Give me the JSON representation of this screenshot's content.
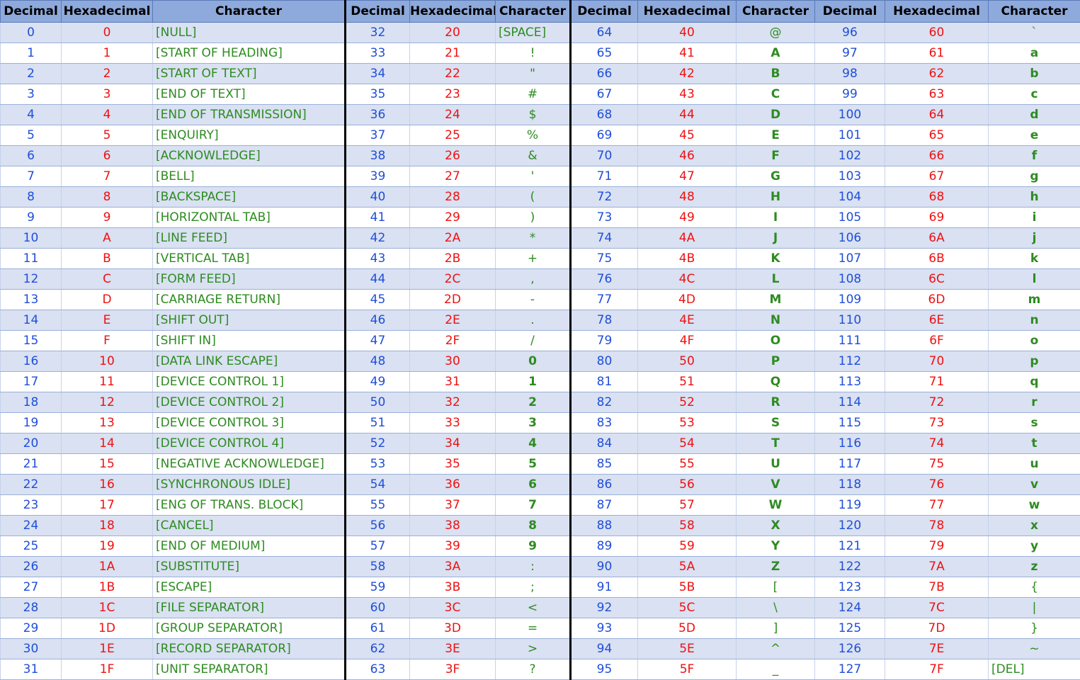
{
  "headers": [
    "Decimal",
    "Hexadecimal",
    "Character",
    "Decimal",
    "Hexadecimal",
    "Character",
    "Decimal",
    "Hexadecimal",
    "Character",
    "Decimal",
    "Hexadecimal",
    "Character"
  ],
  "colors": {
    "decimal": "#1f4ed8",
    "hexadecimal": "#ee1111",
    "character": "#2e8b21",
    "header_bg": "#8ea9db",
    "band": "#d9e1f2"
  },
  "rows": [
    [
      "0",
      "0",
      "[NULL]",
      "32",
      "20",
      "[SPACE]",
      "64",
      "40",
      "@",
      "96",
      "60",
      "`"
    ],
    [
      "1",
      "1",
      "[START OF HEADING]",
      "33",
      "21",
      "!",
      "65",
      "41",
      "A",
      "97",
      "61",
      "a"
    ],
    [
      "2",
      "2",
      "[START OF TEXT]",
      "34",
      "22",
      "\"",
      "66",
      "42",
      "B",
      "98",
      "62",
      "b"
    ],
    [
      "3",
      "3",
      "[END OF TEXT]",
      "35",
      "23",
      "#",
      "67",
      "43",
      "C",
      "99",
      "63",
      "c"
    ],
    [
      "4",
      "4",
      "[END OF TRANSMISSION]",
      "36",
      "24",
      "$",
      "68",
      "44",
      "D",
      "100",
      "64",
      "d"
    ],
    [
      "5",
      "5",
      "[ENQUIRY]",
      "37",
      "25",
      "%",
      "69",
      "45",
      "E",
      "101",
      "65",
      "e"
    ],
    [
      "6",
      "6",
      "[ACKNOWLEDGE]",
      "38",
      "26",
      "&",
      "70",
      "46",
      "F",
      "102",
      "66",
      "f"
    ],
    [
      "7",
      "7",
      "[BELL]",
      "39",
      "27",
      "'",
      "71",
      "47",
      "G",
      "103",
      "67",
      "g"
    ],
    [
      "8",
      "8",
      "[BACKSPACE]",
      "40",
      "28",
      "(",
      "72",
      "48",
      "H",
      "104",
      "68",
      "h"
    ],
    [
      "9",
      "9",
      "[HORIZONTAL TAB]",
      "41",
      "29",
      ")",
      "73",
      "49",
      "I",
      "105",
      "69",
      "i"
    ],
    [
      "10",
      "A",
      "[LINE FEED]",
      "42",
      "2A",
      "*",
      "74",
      "4A",
      "J",
      "106",
      "6A",
      "j"
    ],
    [
      "11",
      "B",
      "[VERTICAL TAB]",
      "43",
      "2B",
      "+",
      "75",
      "4B",
      "K",
      "107",
      "6B",
      "k"
    ],
    [
      "12",
      "C",
      "[FORM FEED]",
      "44",
      "2C",
      ",",
      "76",
      "4C",
      "L",
      "108",
      "6C",
      "l"
    ],
    [
      "13",
      "D",
      "[CARRIAGE RETURN]",
      "45",
      "2D",
      "-",
      "77",
      "4D",
      "M",
      "109",
      "6D",
      "m"
    ],
    [
      "14",
      "E",
      "[SHIFT OUT]",
      "46",
      "2E",
      ".",
      "78",
      "4E",
      "N",
      "110",
      "6E",
      "n"
    ],
    [
      "15",
      "F",
      "[SHIFT IN]",
      "47",
      "2F",
      "/",
      "79",
      "4F",
      "O",
      "111",
      "6F",
      "o"
    ],
    [
      "16",
      "10",
      "[DATA LINK ESCAPE]",
      "48",
      "30",
      "0",
      "80",
      "50",
      "P",
      "112",
      "70",
      "p"
    ],
    [
      "17",
      "11",
      "[DEVICE CONTROL 1]",
      "49",
      "31",
      "1",
      "81",
      "51",
      "Q",
      "113",
      "71",
      "q"
    ],
    [
      "18",
      "12",
      "[DEVICE CONTROL 2]",
      "50",
      "32",
      "2",
      "82",
      "52",
      "R",
      "114",
      "72",
      "r"
    ],
    [
      "19",
      "13",
      "[DEVICE CONTROL 3]",
      "51",
      "33",
      "3",
      "83",
      "53",
      "S",
      "115",
      "73",
      "s"
    ],
    [
      "20",
      "14",
      "[DEVICE CONTROL 4]",
      "52",
      "34",
      "4",
      "84",
      "54",
      "T",
      "116",
      "74",
      "t"
    ],
    [
      "21",
      "15",
      "[NEGATIVE ACKNOWLEDGE]",
      "53",
      "35",
      "5",
      "85",
      "55",
      "U",
      "117",
      "75",
      "u"
    ],
    [
      "22",
      "16",
      "[SYNCHRONOUS IDLE]",
      "54",
      "36",
      "6",
      "86",
      "56",
      "V",
      "118",
      "76",
      "v"
    ],
    [
      "23",
      "17",
      "[ENG OF TRANS. BLOCK]",
      "55",
      "37",
      "7",
      "87",
      "57",
      "W",
      "119",
      "77",
      "w"
    ],
    [
      "24",
      "18",
      "[CANCEL]",
      "56",
      "38",
      "8",
      "88",
      "58",
      "X",
      "120",
      "78",
      "x"
    ],
    [
      "25",
      "19",
      "[END OF MEDIUM]",
      "57",
      "39",
      "9",
      "89",
      "59",
      "Y",
      "121",
      "79",
      "y"
    ],
    [
      "26",
      "1A",
      "[SUBSTITUTE]",
      "58",
      "3A",
      ":",
      "90",
      "5A",
      "Z",
      "122",
      "7A",
      "z"
    ],
    [
      "27",
      "1B",
      "[ESCAPE]",
      "59",
      "3B",
      ";",
      "91",
      "5B",
      "[",
      "123",
      "7B",
      "{"
    ],
    [
      "28",
      "1C",
      "[FILE SEPARATOR]",
      "60",
      "3C",
      "<",
      "92",
      "5C",
      "\\",
      "124",
      "7C",
      "|"
    ],
    [
      "29",
      "1D",
      "[GROUP SEPARATOR]",
      "61",
      "3D",
      "=",
      "93",
      "5D",
      "]",
      "125",
      "7D",
      "}"
    ],
    [
      "30",
      "1E",
      "[RECORD SEPARATOR]",
      "62",
      "3E",
      ">",
      "94",
      "5E",
      "^",
      "126",
      "7E",
      "~"
    ],
    [
      "31",
      "1F",
      "[UNIT SEPARATOR]",
      "63",
      "3F",
      "?",
      "95",
      "5F",
      "_",
      "127",
      "7F",
      "[DEL]"
    ]
  ]
}
